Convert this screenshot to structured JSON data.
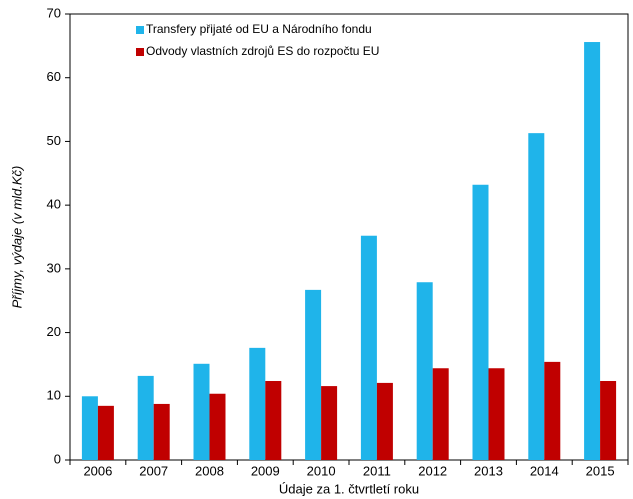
{
  "chart_data": {
    "type": "bar",
    "categories": [
      "2006",
      "2007",
      "2008",
      "2009",
      "2010",
      "2011",
      "2012",
      "2013",
      "2014",
      "2015"
    ],
    "series": [
      {
        "name": "Transfery přijaté od EU a Národního fondu",
        "color": "#1fb4ea",
        "values": [
          10.0,
          13.2,
          15.1,
          17.6,
          26.7,
          35.2,
          27.9,
          43.2,
          51.3,
          65.6
        ]
      },
      {
        "name": "Odvody vlastních zdrojů ES do rozpočtu EU",
        "color": "#c00000",
        "values": [
          8.5,
          8.8,
          10.4,
          12.4,
          11.6,
          12.1,
          14.4,
          14.4,
          15.4,
          12.4
        ]
      }
    ],
    "y_label": "Příjmy, výdaje (v mld.Kč)",
    "x_label": "Údaje za 1. čtvrtletí roku",
    "ylim": [
      0,
      70
    ],
    "yticks": [
      0,
      10,
      20,
      30,
      40,
      50,
      60,
      70
    ],
    "legend": "top-left"
  }
}
